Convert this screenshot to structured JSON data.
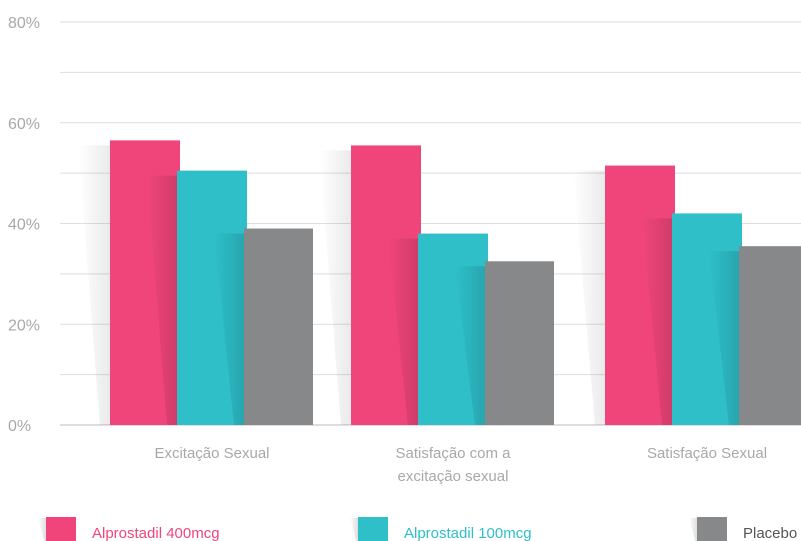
{
  "chart_data": {
    "type": "bar",
    "title": "",
    "xlabel": "",
    "ylabel": "",
    "ylim": [
      0,
      80
    ],
    "y_ticks": [
      {
        "value": 0,
        "label": "0%"
      },
      {
        "value": 20,
        "label": "20%"
      },
      {
        "value": 40,
        "label": "40%"
      },
      {
        "value": 60,
        "label": "60%"
      },
      {
        "value": 80,
        "label": "80%"
      }
    ],
    "grid": true,
    "legend_position": "bottom",
    "categories": [
      {
        "lines": [
          "Excitação Sexual"
        ]
      },
      {
        "lines": [
          "Satisfação com a",
          "excitação sexual"
        ]
      },
      {
        "lines": [
          "Satisfação Sexual"
        ]
      }
    ],
    "series": [
      {
        "name": "Alprostadil 400mcg",
        "color": "#f0457a",
        "values": [
          56.5,
          55.5,
          51.5
        ]
      },
      {
        "name": "Alprostadil 100mcg",
        "color": "#2ebfc9",
        "values": [
          50.5,
          38,
          42
        ]
      },
      {
        "name": "Placebo",
        "color": "#87888a",
        "values": [
          39,
          32.5,
          35.5
        ]
      }
    ]
  }
}
